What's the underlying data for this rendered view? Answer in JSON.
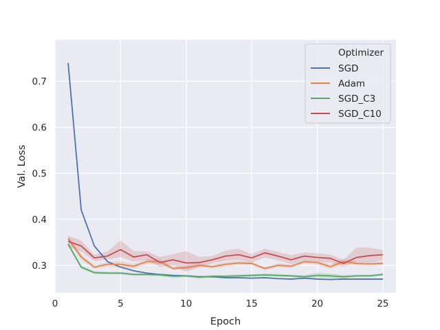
{
  "chart_data": {
    "type": "line",
    "xlabel": "Epoch",
    "ylabel": "Val. Loss",
    "xlim": [
      0,
      26
    ],
    "ylim": [
      0.24,
      0.79
    ],
    "xticks": [
      0,
      5,
      10,
      15,
      20,
      25
    ],
    "yticks": [
      0.3,
      0.4,
      0.5,
      0.6,
      0.7
    ],
    "grid": true,
    "legend": {
      "title": "Optimizer",
      "placement": "top-right"
    },
    "x": [
      1,
      2,
      3,
      4,
      5,
      6,
      7,
      8,
      9,
      10,
      11,
      12,
      13,
      14,
      15,
      16,
      17,
      18,
      19,
      20,
      21,
      22,
      23,
      24,
      25
    ],
    "series": [
      {
        "name": "SGD",
        "color": "#4c72b0",
        "values": [
          0.74,
          0.42,
          0.342,
          0.308,
          0.296,
          0.288,
          0.283,
          0.28,
          0.278,
          0.277,
          0.275,
          0.275,
          0.273,
          0.273,
          0.272,
          0.273,
          0.271,
          0.27,
          0.272,
          0.27,
          0.269,
          0.27,
          0.27,
          0.27,
          0.27
        ],
        "lower": [
          0.74,
          0.42,
          0.342,
          0.308,
          0.296,
          0.288,
          0.283,
          0.28,
          0.278,
          0.277,
          0.275,
          0.275,
          0.273,
          0.273,
          0.272,
          0.273,
          0.271,
          0.27,
          0.272,
          0.27,
          0.269,
          0.27,
          0.27,
          0.27,
          0.27
        ],
        "upper": [
          0.74,
          0.42,
          0.342,
          0.308,
          0.296,
          0.288,
          0.283,
          0.28,
          0.278,
          0.277,
          0.275,
          0.275,
          0.273,
          0.273,
          0.272,
          0.273,
          0.271,
          0.27,
          0.272,
          0.27,
          0.269,
          0.27,
          0.27,
          0.27,
          0.27
        ]
      },
      {
        "name": "Adam",
        "color": "#dd8452",
        "values": [
          0.358,
          0.318,
          0.296,
          0.302,
          0.302,
          0.298,
          0.308,
          0.308,
          0.293,
          0.295,
          0.3,
          0.297,
          0.302,
          0.305,
          0.304,
          0.293,
          0.3,
          0.298,
          0.308,
          0.306,
          0.297,
          0.308,
          0.304,
          0.303,
          0.304
        ],
        "lower": [
          0.352,
          0.312,
          0.292,
          0.297,
          0.295,
          0.293,
          0.302,
          0.302,
          0.29,
          0.29,
          0.296,
          0.293,
          0.297,
          0.3,
          0.3,
          0.289,
          0.296,
          0.294,
          0.304,
          0.301,
          0.292,
          0.302,
          0.299,
          0.299,
          0.3
        ],
        "upper": [
          0.366,
          0.324,
          0.3,
          0.307,
          0.309,
          0.303,
          0.314,
          0.314,
          0.296,
          0.3,
          0.304,
          0.301,
          0.307,
          0.31,
          0.308,
          0.297,
          0.304,
          0.302,
          0.312,
          0.311,
          0.302,
          0.314,
          0.309,
          0.307,
          0.308
        ]
      },
      {
        "name": "SGD_C3",
        "color": "#55a868",
        "values": [
          0.346,
          0.296,
          0.284,
          0.283,
          0.283,
          0.28,
          0.28,
          0.279,
          0.276,
          0.277,
          0.274,
          0.276,
          0.276,
          0.277,
          0.278,
          0.279,
          0.278,
          0.277,
          0.275,
          0.278,
          0.277,
          0.275,
          0.277,
          0.277,
          0.28
        ],
        "lower": [
          0.341,
          0.292,
          0.281,
          0.28,
          0.28,
          0.277,
          0.277,
          0.276,
          0.273,
          0.274,
          0.271,
          0.273,
          0.273,
          0.274,
          0.275,
          0.276,
          0.275,
          0.274,
          0.272,
          0.273,
          0.272,
          0.271,
          0.274,
          0.274,
          0.277
        ],
        "upper": [
          0.351,
          0.3,
          0.287,
          0.286,
          0.286,
          0.283,
          0.283,
          0.282,
          0.279,
          0.28,
          0.277,
          0.279,
          0.279,
          0.28,
          0.281,
          0.282,
          0.281,
          0.28,
          0.278,
          0.284,
          0.282,
          0.279,
          0.28,
          0.28,
          0.283
        ]
      },
      {
        "name": "SGD_C10",
        "color": "#c44e52",
        "values": [
          0.352,
          0.342,
          0.316,
          0.32,
          0.334,
          0.318,
          0.323,
          0.306,
          0.312,
          0.305,
          0.306,
          0.312,
          0.32,
          0.323,
          0.316,
          0.327,
          0.32,
          0.312,
          0.32,
          0.317,
          0.315,
          0.304,
          0.317,
          0.321,
          0.323
        ],
        "lower": [
          0.34,
          0.33,
          0.309,
          0.312,
          0.318,
          0.308,
          0.312,
          0.296,
          0.3,
          0.286,
          0.296,
          0.304,
          0.31,
          0.312,
          0.306,
          0.317,
          0.311,
          0.303,
          0.311,
          0.308,
          0.306,
          0.297,
          0.308,
          0.306,
          0.311
        ],
        "upper": [
          0.364,
          0.354,
          0.323,
          0.33,
          0.354,
          0.331,
          0.33,
          0.318,
          0.324,
          0.331,
          0.318,
          0.32,
          0.332,
          0.336,
          0.324,
          0.336,
          0.329,
          0.322,
          0.328,
          0.326,
          0.323,
          0.312,
          0.339,
          0.338,
          0.333
        ]
      }
    ]
  }
}
